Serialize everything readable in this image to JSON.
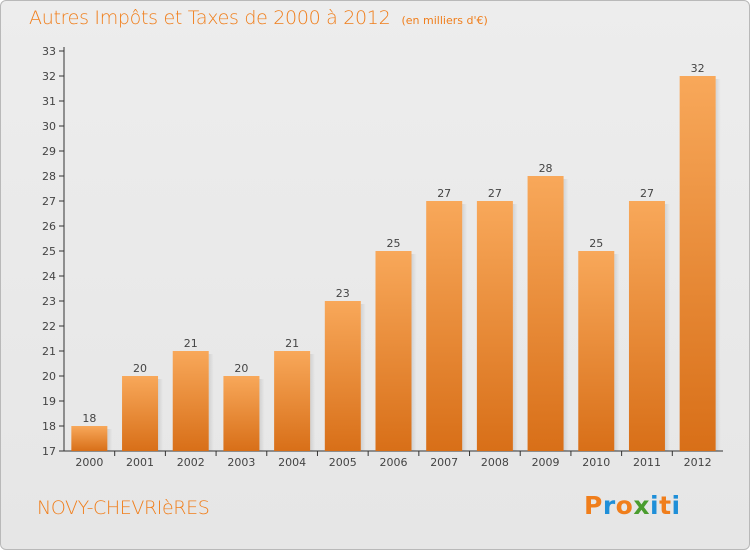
{
  "header": {
    "title": "Autres Impôts et Taxes de 2000 à 2012",
    "subtitle": "(en milliers d'€)"
  },
  "footer": {
    "commune": "NOVY-CHEVRIèRES",
    "logo": {
      "text": "Proxiti",
      "letter_colors": [
        "#f07e1b",
        "#1f8fd8",
        "#f07e1b",
        "#4a9c2e",
        "#1f8fd8",
        "#f07e1b",
        "#1f8fd8"
      ]
    }
  },
  "colors": {
    "accent": "#f07e1b",
    "bar_top": "#f8a85a",
    "bar_bottom": "#d86f18",
    "axis": "#333333",
    "tick_text": "#444444"
  },
  "chart_data": {
    "type": "bar",
    "title": "Autres Impôts et Taxes de 2000 à 2012",
    "subtitle": "(en milliers d'€)",
    "xlabel": "",
    "ylabel": "",
    "categories": [
      "2000",
      "2001",
      "2002",
      "2003",
      "2004",
      "2005",
      "2006",
      "2007",
      "2008",
      "2009",
      "2010",
      "2011",
      "2012"
    ],
    "values": [
      18,
      20,
      21,
      20,
      21,
      23,
      25,
      27,
      27,
      28,
      25,
      27,
      32
    ],
    "value_labels": [
      "18",
      "20",
      "21",
      "20",
      "21",
      "23",
      "25",
      "27",
      "27",
      "28",
      "25",
      "27",
      "32"
    ],
    "ylim": [
      17,
      33
    ],
    "yticks": [
      17,
      18,
      19,
      20,
      21,
      22,
      23,
      24,
      25,
      26,
      27,
      28,
      29,
      30,
      31,
      32,
      33
    ],
    "grid": false,
    "legend": "none"
  }
}
